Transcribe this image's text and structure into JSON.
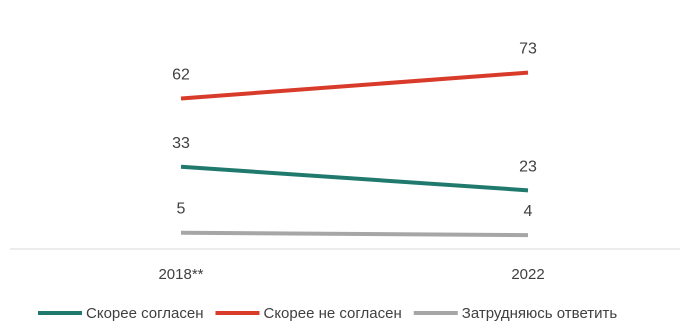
{
  "chart_data": {
    "type": "line",
    "categories": [
      "2018**",
      "2022"
    ],
    "series": [
      {
        "name": "Скорее согласен",
        "values": [
          33,
          23
        ],
        "color": "#1f7a6d"
      },
      {
        "name": "Скорее не согласен",
        "values": [
          62,
          73
        ],
        "color": "#d93b2b"
      },
      {
        "name": "Затрудняюсь ответить",
        "values": [
          5,
          4
        ],
        "color": "#a6a6a6"
      }
    ],
    "data_labels": true,
    "grid": false,
    "legend_position": "bottom"
  }
}
